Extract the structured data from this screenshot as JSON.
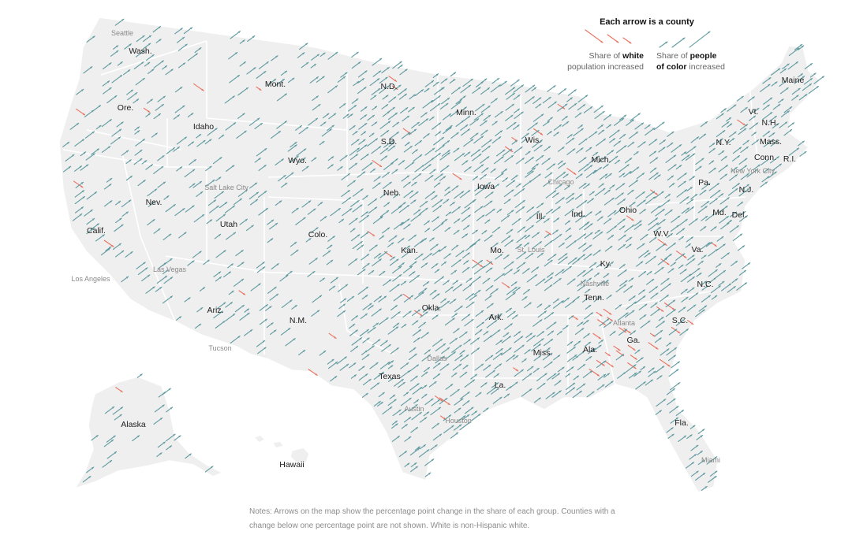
{
  "legend": {
    "title": "Each arrow is a county",
    "white_prefix": "Share of ",
    "white_bold": "white",
    "white_suffix": "population increased",
    "color_prefix": "Share of ",
    "color_bold_1": "people",
    "color_bold_2": "of color",
    "color_suffix": " increased",
    "white_color": "#e8715f",
    "color_color": "#5f9aa0"
  },
  "notes": {
    "line1": "Notes: Arrows on the map show the percentage point change in the share of each group. Counties with a",
    "line2": "change below one percentage point are not shown. White is non-Hispanic white."
  },
  "map_colors": {
    "land": "#efefef",
    "border": "#ffffff"
  },
  "states": [
    "Wash.",
    "Mont.",
    "N.D.",
    "Minn.",
    "Ore.",
    "Idaho",
    "S.D.",
    "Wis.",
    "Mich.",
    "Wyo.",
    "Neb.",
    "Iowa",
    "Ill.",
    "Ind.",
    "Ohio",
    "Nev.",
    "Utah",
    "Colo.",
    "Calif.",
    "Kan.",
    "Mo.",
    "Ky.",
    "W.V.",
    "Va.",
    "Ariz.",
    "N.M.",
    "Okla.",
    "Ark.",
    "Tenn.",
    "N.C.",
    "S.C.",
    "Ga.",
    "Ala.",
    "Miss.",
    "La.",
    "Texas",
    "Fla.",
    "Alaska",
    "Hawaii",
    "Maine",
    "Vt.",
    "N.H.",
    "N.Y.",
    "Mass.",
    "Conn.",
    "R.I.",
    "Pa.",
    "N.J.",
    "Md.",
    "Del."
  ],
  "cities": [
    "Seattle",
    "Salt Lake City",
    "Chicago",
    "New York City",
    "St. Louis",
    "Los Angeles",
    "Las Vegas",
    "Nashville",
    "Atlanta",
    "Tucson",
    "Dallas",
    "Austin",
    "Houston",
    "Miami"
  ]
}
